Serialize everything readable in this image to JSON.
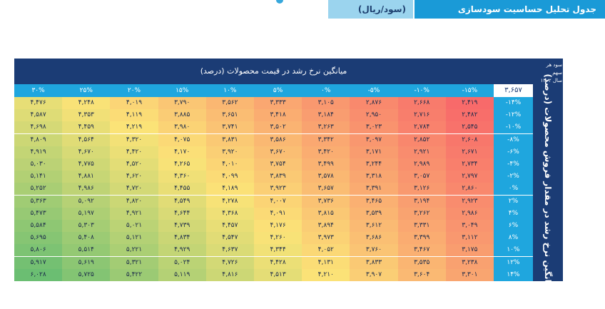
{
  "header": {
    "title": "جدول تحلیل حساسیت سودسازی",
    "unit": "(سود/ریال)"
  },
  "table": {
    "corner_line1": "سود هر سهم",
    "corner_line2": "سال ۱۴۰۲",
    "top_title": "میانگین نرخ رشد در قیمت محصولات (درصد)",
    "side_title": "میانگین نرخ رشد در مقدار فروش محصولات (درصد)",
    "base_value": "۳,۶۵۷",
    "columns": [
      "-۱۵%",
      "-۱۰%",
      "-۵%",
      "۰%",
      "۵%",
      "۱۰%",
      "۱۵%",
      "۲۰%",
      "۲۵%",
      "۳۰%"
    ],
    "rows": [
      {
        "label": "-۱۴%",
        "values": [
          "۲,۴۱۹",
          "۲,۶۶۸",
          "۲,۸۷۶",
          "۳,۱۰۵",
          "۳,۳۳۳",
          "۳,۵۶۲",
          "۳,۷۹۰",
          "۴,۰۱۹",
          "۴,۲۴۸",
          "۴,۴۷۶"
        ]
      },
      {
        "label": "-۱۲%",
        "values": [
          "۲,۴۸۲",
          "۲,۷۱۶",
          "۲,۹۵۰",
          "۳,۱۸۴",
          "۳,۴۱۸",
          "۳,۶۵۱",
          "۳,۸۸۵",
          "۴,۱۱۹",
          "۴,۳۵۳",
          "۴,۵۸۷"
        ]
      },
      {
        "label": "-۱۰%",
        "values": [
          "۲,۵۴۵",
          "۲,۷۸۴",
          "۳,۰۲۳",
          "۳,۲۶۳",
          "۳,۵۰۲",
          "۳,۷۴۱",
          "۳,۹۸۰",
          "۴,۲۱۹",
          "۴,۴۵۹",
          "۴,۶۹۸"
        ]
      },
      {
        "label": "-۸%",
        "values": [
          "۲,۶۰۸",
          "۲,۸۵۲",
          "۳,۰۹۷",
          "۳,۳۴۲",
          "۳,۵۸۶",
          "۳,۸۳۱",
          "۴,۰۷۵",
          "۴,۳۲۰",
          "۴,۵۶۴",
          "۴,۸۰۹"
        ]
      },
      {
        "label": "-۶%",
        "values": [
          "۲,۶۷۱",
          "۲,۹۲۱",
          "۳,۱۷۱",
          "۳,۴۲۰",
          "۳,۶۷۰",
          "۳,۹۲۰",
          "۴,۱۷۰",
          "۴,۴۲۰",
          "۴,۶۷۰",
          "۴,۹۱۹"
        ]
      },
      {
        "label": "-۴%",
        "values": [
          "۲,۷۳۴",
          "۲,۹۸۹",
          "۳,۲۴۴",
          "۳,۴۹۹",
          "۳,۷۵۴",
          "۴,۰۱۰",
          "۴,۲۶۵",
          "۴,۵۲۰",
          "۴,۷۷۵",
          "۵,۰۳۰"
        ]
      },
      {
        "label": "-۲%",
        "values": [
          "۲,۷۹۷",
          "۳,۰۵۷",
          "۳,۳۱۸",
          "۳,۵۷۸",
          "۳,۸۳۹",
          "۴,۰۹۹",
          "۴,۳۶۰",
          "۴,۶۲۰",
          "۴,۸۸۱",
          "۵,۱۴۱"
        ]
      },
      {
        "label": "۰%",
        "values": [
          "۲,۸۶۰",
          "۳,۱۲۶",
          "۳,۳۹۱",
          "۳,۶۵۷",
          "۳,۹۲۳",
          "۴,۱۸۹",
          "۴,۴۵۵",
          "۴,۷۲۰",
          "۴,۹۸۶",
          "۵,۲۵۲"
        ]
      },
      {
        "label": "۲%",
        "values": [
          "۲,۹۲۳",
          "۳,۱۹۴",
          "۳,۴۶۵",
          "۳,۷۳۶",
          "۴,۰۰۷",
          "۴,۲۷۸",
          "۴,۵۴۹",
          "۴,۸۲۰",
          "۵,۰۹۲",
          "۵,۳۶۳"
        ]
      },
      {
        "label": "۴%",
        "values": [
          "۲,۹۸۶",
          "۳,۲۶۲",
          "۳,۵۳۹",
          "۳,۸۱۵",
          "۴,۰۹۱",
          "۴,۳۶۸",
          "۴,۶۴۴",
          "۴,۹۲۱",
          "۵,۱۹۷",
          "۵,۴۷۳"
        ]
      },
      {
        "label": "۶%",
        "values": [
          "۳,۰۴۹",
          "۳,۳۳۱",
          "۳,۶۱۲",
          "۳,۸۹۴",
          "۴,۱۷۶",
          "۴,۴۵۷",
          "۴,۷۳۹",
          "۵,۰۲۱",
          "۵,۳۰۳",
          "۵,۵۸۴"
        ]
      },
      {
        "label": "۸%",
        "values": [
          "۳,۱۱۲",
          "۳,۳۹۹",
          "۳,۶۸۶",
          "۳,۹۷۳",
          "۴,۲۶۰",
          "۴,۵۴۷",
          "۴,۸۳۴",
          "۵,۱۲۱",
          "۵,۴۰۸",
          "۵,۶۹۵"
        ]
      },
      {
        "label": "۱۰%",
        "values": [
          "۳,۱۷۵",
          "۳,۴۶۷",
          "۳,۷۶۰",
          "۴,۰۵۲",
          "۴,۳۴۴",
          "۴,۶۳۷",
          "۴,۹۲۹",
          "۵,۲۲۱",
          "۵,۵۱۴",
          "۵,۸۰۶"
        ]
      },
      {
        "label": "۱۲%",
        "values": [
          "۳,۲۳۸",
          "۳,۵۳۵",
          "۳,۸۳۳",
          "۴,۱۳۱",
          "۴,۴۲۸",
          "۴,۷۲۶",
          "۵,۰۲۴",
          "۵,۳۲۱",
          "۵,۶۱۹",
          "۵,۹۱۷"
        ]
      },
      {
        "label": "۱۴%",
        "values": [
          "۳,۳۰۱",
          "۳,۶۰۴",
          "۳,۹۰۷",
          "۴,۲۱۰",
          "۴,۵۱۳",
          "۴,۸۱۶",
          "۵,۱۱۹",
          "۵,۴۲۲",
          "۵,۷۲۵",
          "۶,۰۲۸"
        ]
      }
    ]
  },
  "colors": {
    "navy": "#1b3c75",
    "blue": "#1fa6de",
    "tab_light": "#9bd4ee",
    "tab_dark": "#1a9ad7",
    "scale_low": "#f86a6a",
    "scale_mid": "#fbe377",
    "scale_high": "#6bbe72"
  }
}
